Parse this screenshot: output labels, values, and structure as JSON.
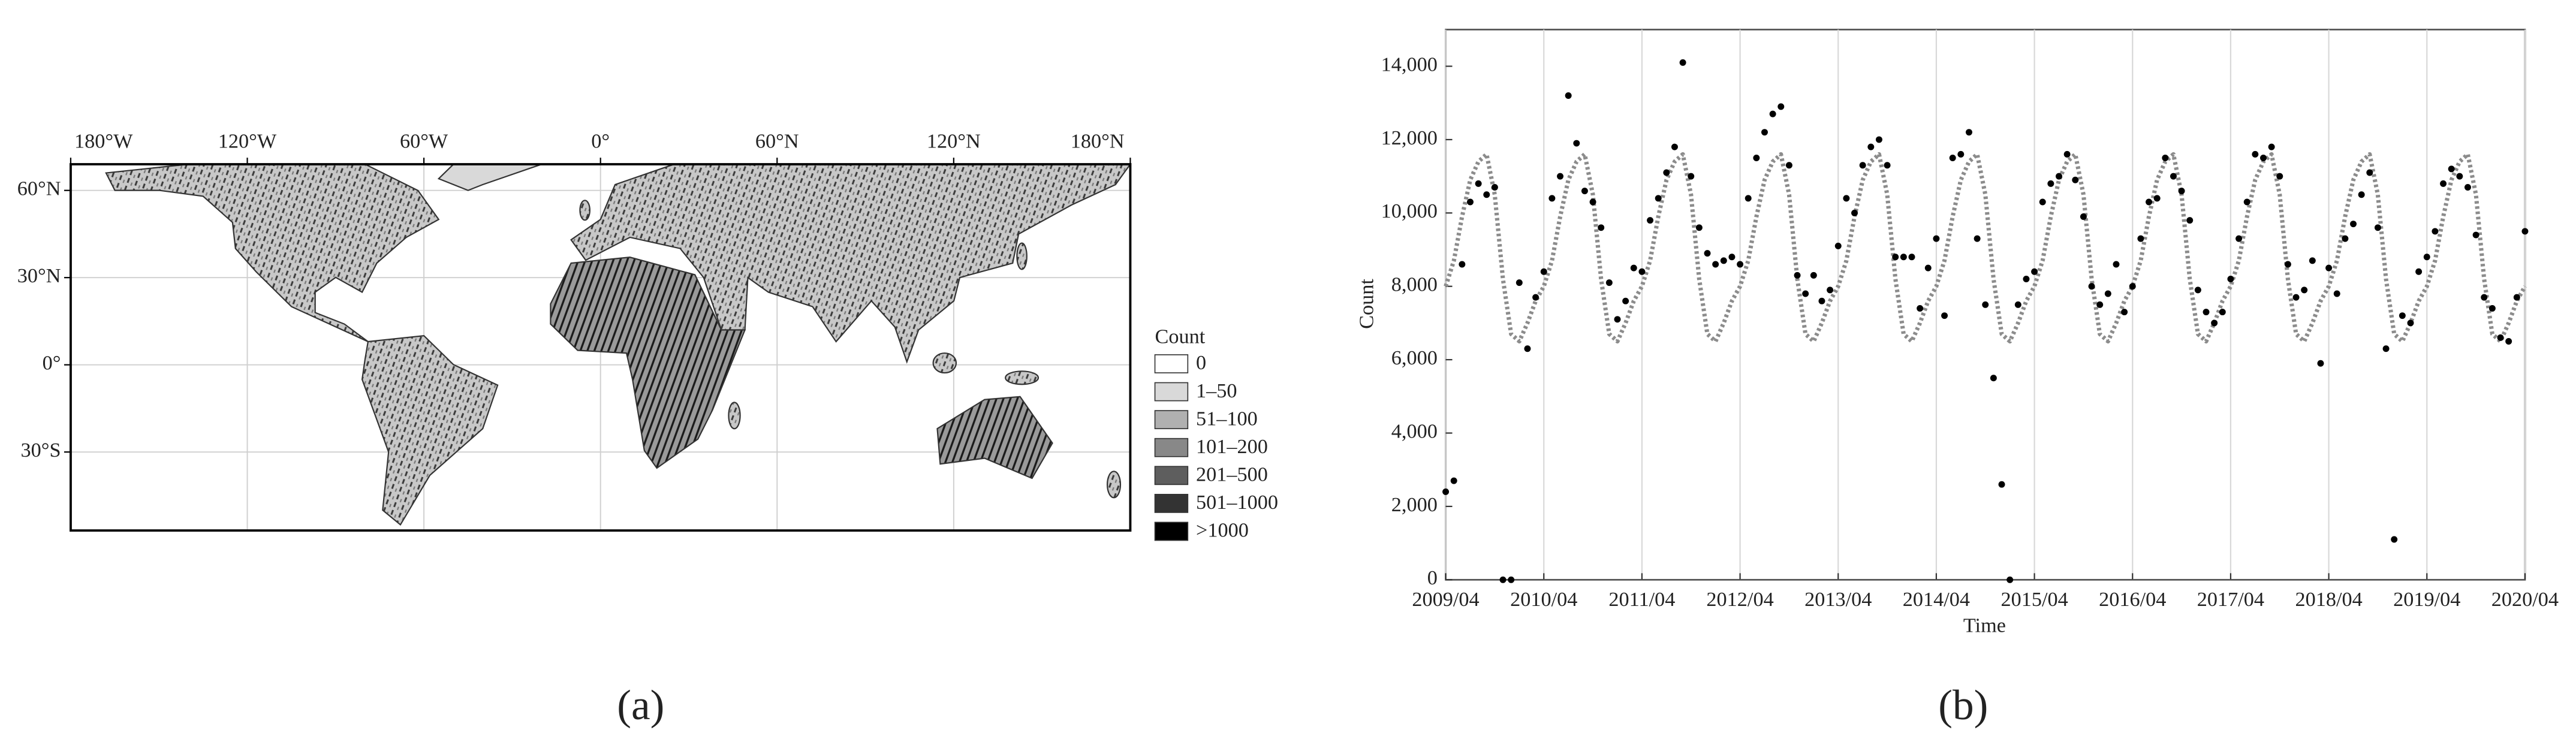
{
  "chart_data": [
    {
      "type": "map",
      "panel_label": "(a)",
      "xlim": [
        -180,
        180
      ],
      "ylim": [
        -57,
        69
      ],
      "xticks": [
        {
          "value": -180,
          "label": "180°W"
        },
        {
          "value": -120,
          "label": "120°W"
        },
        {
          "value": -60,
          "label": "60°W"
        },
        {
          "value": 0,
          "label": "0°"
        },
        {
          "value": 60,
          "label": "60°N"
        },
        {
          "value": 120,
          "label": "120°N"
        },
        {
          "value": 180,
          "label": "180°N"
        }
      ],
      "yticks": [
        {
          "value": 60,
          "label": "60°N"
        },
        {
          "value": 30,
          "label": "30°N"
        },
        {
          "value": 0,
          "label": "0°"
        },
        {
          "value": -30,
          "label": "30°S"
        }
      ],
      "grid": true,
      "legend": {
        "title": "Count",
        "entries": [
          {
            "label": "0",
            "color": "#ffffff"
          },
          {
            "label": "1–50",
            "color": "#d9d9d9"
          },
          {
            "label": "51–100",
            "color": "#b0b0b0"
          },
          {
            "label": "101–200",
            "color": "#888888"
          },
          {
            "label": "201–500",
            "color": "#5e5e5e"
          },
          {
            "label": "501–1000",
            "color": "#333333"
          },
          {
            "label": ">1000",
            "color": "#000000"
          }
        ]
      }
    },
    {
      "type": "scatter",
      "panel_label": "(b)",
      "xlabel": "Time",
      "ylabel": "Count",
      "x": [
        "2009/04",
        "2009/05",
        "2009/06",
        "2009/07",
        "2009/08",
        "2009/09",
        "2009/10",
        "2009/11",
        "2009/12",
        "2010/01",
        "2010/02",
        "2010/03",
        "2010/04",
        "2010/05",
        "2010/06",
        "2010/07",
        "2010/08",
        "2010/09",
        "2010/10",
        "2010/11",
        "2010/12",
        "2011/01",
        "2011/02",
        "2011/03",
        "2011/04",
        "2011/05",
        "2011/06",
        "2011/07",
        "2011/08",
        "2011/09",
        "2011/10",
        "2011/11",
        "2011/12",
        "2012/01",
        "2012/02",
        "2012/03",
        "2012/04",
        "2012/05",
        "2012/06",
        "2012/07",
        "2012/08",
        "2012/09",
        "2012/10",
        "2012/11",
        "2012/12",
        "2013/01",
        "2013/02",
        "2013/03",
        "2013/04",
        "2013/05",
        "2013/06",
        "2013/07",
        "2013/08",
        "2013/09",
        "2013/10",
        "2013/11",
        "2013/12",
        "2014/01",
        "2014/02",
        "2014/03",
        "2014/04",
        "2014/05",
        "2014/06",
        "2014/07",
        "2014/08",
        "2014/09",
        "2014/10",
        "2014/11",
        "2014/12",
        "2015/01",
        "2015/02",
        "2015/03",
        "2015/04",
        "2015/05",
        "2015/06",
        "2015/07",
        "2015/08",
        "2015/09",
        "2015/10",
        "2015/11",
        "2015/12",
        "2016/01",
        "2016/02",
        "2016/03",
        "2016/04",
        "2016/05",
        "2016/06",
        "2016/07",
        "2016/08",
        "2016/09",
        "2016/10",
        "2016/11",
        "2016/12",
        "2017/01",
        "2017/02",
        "2017/03",
        "2017/04",
        "2017/05",
        "2017/06",
        "2017/07",
        "2017/08",
        "2017/09",
        "2017/10",
        "2017/11",
        "2017/12",
        "2018/01",
        "2018/02",
        "2018/03",
        "2018/04",
        "2018/05",
        "2018/06",
        "2018/07",
        "2018/08",
        "2018/09",
        "2018/10",
        "2018/11",
        "2018/12",
        "2019/01",
        "2019/02",
        "2019/03",
        "2019/04",
        "2019/05",
        "2019/06",
        "2019/07",
        "2019/08",
        "2019/09",
        "2019/10",
        "2019/11",
        "2019/12",
        "2020/01",
        "2020/02",
        "2020/03",
        "2020/04"
      ],
      "xlim": [
        "2009/04",
        "2020/04"
      ],
      "xticks": [
        "2009/04",
        "2010/04",
        "2011/04",
        "2012/04",
        "2013/04",
        "2014/04",
        "2015/04",
        "2016/04",
        "2017/04",
        "2018/04",
        "2019/04",
        "2020/04"
      ],
      "ylim": [
        0,
        15000
      ],
      "yticks": [
        0,
        {
          "value": 2000,
          "label": "2,000"
        },
        {
          "value": 4000,
          "label": "4,000"
        },
        {
          "value": 6000,
          "label": "6,000"
        },
        {
          "value": 8000,
          "label": "8,000"
        },
        {
          "value": 10000,
          "label": "10,000"
        },
        {
          "value": 12000,
          "label": "12,000"
        },
        {
          "value": 14000,
          "label": "14,000"
        }
      ],
      "grid": "x",
      "series": [
        {
          "type": "scatter",
          "color": "#000000",
          "values": [
            2400,
            2700,
            8600,
            10300,
            10800,
            10500,
            10700,
            0,
            0,
            8100,
            6300,
            7700,
            8400,
            10400,
            11000,
            13200,
            11900,
            10600,
            10300,
            9600,
            8100,
            7100,
            7600,
            8500,
            8400,
            9800,
            10400,
            11100,
            11800,
            14100,
            11000,
            9600,
            8900,
            8600,
            8700,
            8800,
            8600,
            10400,
            11500,
            12200,
            12700,
            12900,
            11300,
            8300,
            7800,
            8300,
            7600,
            7900,
            9100,
            10400,
            10000,
            11300,
            11800,
            12000,
            11300,
            8800,
            8800,
            8800,
            7400,
            8500,
            9300,
            7200,
            11500,
            11600,
            12200,
            9300,
            7500,
            5500,
            2600,
            0,
            7500,
            8200,
            8400,
            10300,
            10800,
            11000,
            11600,
            10900,
            9900,
            8000,
            7500,
            7800,
            8600,
            7300,
            8000,
            9300,
            10300,
            10400,
            11500,
            11000,
            10600,
            9800,
            7900,
            7300,
            7000,
            7300,
            8200,
            9300,
            10300,
            11600,
            11500,
            11800,
            11000,
            8600,
            7700,
            7900,
            8700,
            5900,
            8500,
            7800,
            9300,
            9700,
            10500,
            11100,
            9600,
            6300,
            1100,
            7200,
            7000,
            8400,
            8800,
            9500,
            10800,
            11200,
            11000,
            10700,
            9400,
            7700,
            7400,
            6600,
            6500,
            7700,
            9500
          ]
        },
        {
          "type": "line",
          "style": "dotted",
          "color": "#8c8c8c",
          "values": [
            8000,
            8700,
            9900,
            10900,
            11400,
            11600,
            10500,
            8200,
            6700,
            6500,
            7000,
            7600,
            8000,
            8700,
            9900,
            10900,
            11400,
            11600,
            10500,
            8200,
            6700,
            6500,
            7000,
            7600,
            8000,
            8700,
            9900,
            10900,
            11400,
            11600,
            10500,
            8200,
            6700,
            6500,
            7000,
            7600,
            8000,
            8700,
            9900,
            10900,
            11400,
            11600,
            10500,
            8200,
            6700,
            6500,
            7000,
            7600,
            8000,
            8700,
            9900,
            10900,
            11400,
            11600,
            10500,
            8200,
            6700,
            6500,
            7000,
            7600,
            8000,
            8700,
            9900,
            10900,
            11400,
            11600,
            10500,
            8200,
            6700,
            6500,
            7000,
            7600,
            8000,
            8700,
            9900,
            10900,
            11400,
            11600,
            10500,
            8200,
            6700,
            6500,
            7000,
            7600,
            8000,
            8700,
            9900,
            10900,
            11400,
            11600,
            10500,
            8200,
            6700,
            6500,
            7000,
            7600,
            8000,
            8700,
            9900,
            10900,
            11400,
            11600,
            10500,
            8200,
            6700,
            6500,
            7000,
            7600,
            8000,
            8700,
            9900,
            10900,
            11400,
            11600,
            10500,
            8200,
            6700,
            6500,
            7000,
            7600,
            8000,
            8700,
            9900,
            10900,
            11400,
            11600,
            10500,
            8200,
            6700,
            6500,
            7000,
            7600,
            8000
          ]
        }
      ]
    }
  ]
}
